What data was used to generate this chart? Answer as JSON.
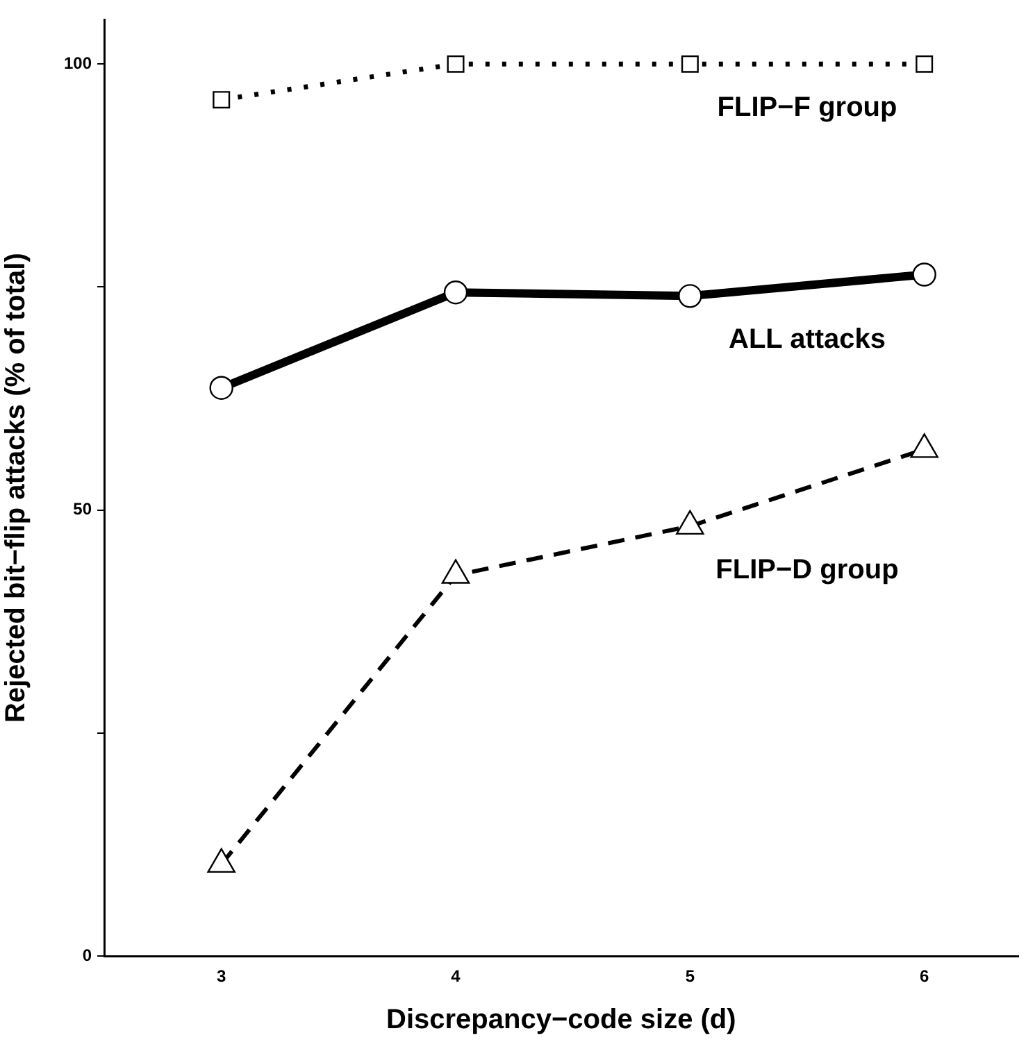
{
  "chart_data": {
    "type": "line",
    "xlabel": "Discrepancy−code size (d)",
    "ylabel": "Rejected bit−flip attacks (% of total)",
    "x": [
      3,
      4,
      5,
      6
    ],
    "xlim": [
      2.5,
      6.4
    ],
    "xticks": [
      3,
      4,
      5,
      6
    ],
    "ylim": [
      0,
      105
    ],
    "yticks": [
      0,
      {
        "value": 25,
        "label": null
      },
      50,
      {
        "value": 75,
        "label": null
      },
      100
    ],
    "grid": false,
    "legend": false,
    "series": [
      {
        "name": "FLIP−F group",
        "color": "#000000",
        "values": [
          96,
          100,
          100,
          100
        ],
        "marker": "square",
        "line_style": "dotted"
      },
      {
        "name": "ALL attacks",
        "color": "#000000",
        "values": [
          63.7,
          74.4,
          74.0,
          76.4
        ],
        "marker": "circle",
        "line_style": "solid"
      },
      {
        "name": "FLIP−D group",
        "color": "#000000",
        "values": [
          10.3,
          42.7,
          48.2,
          56.8
        ],
        "marker": "triangle",
        "line_style": "dashed"
      }
    ]
  }
}
